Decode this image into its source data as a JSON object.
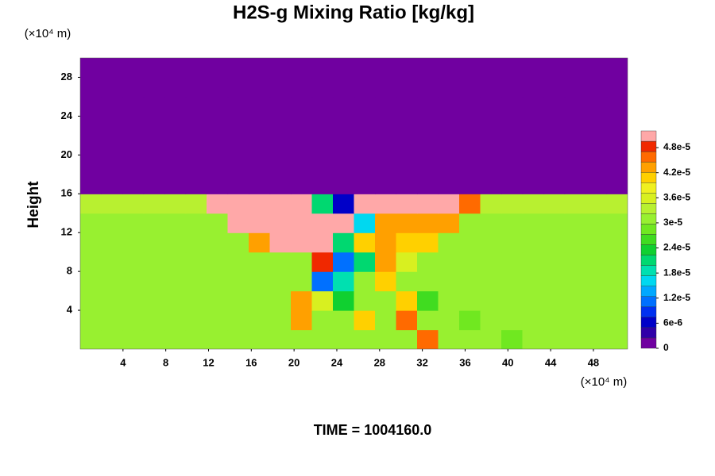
{
  "chart_data": {
    "type": "contour",
    "title": "H2S-g Mixing Ratio [kg/kg]",
    "ylabel": "Height",
    "xunit": "(×10⁴ m)",
    "yunit": "(×10⁴ m)",
    "footer": "TIME = 1004160.0",
    "xlim": [
      0,
      51.2
    ],
    "ylim": [
      0,
      30
    ],
    "xticks": [
      4,
      8,
      12,
      16,
      20,
      24,
      28,
      32,
      36,
      40,
      44,
      48
    ],
    "yticks": [
      4,
      8,
      12,
      16,
      20,
      24,
      28
    ],
    "colorbar": {
      "lim": [
        0,
        5.2e-05
      ],
      "colors": [
        "#7000a0",
        "#3000a8",
        "#0000c8",
        "#0030f0",
        "#0070ff",
        "#00a8ff",
        "#00d8f0",
        "#00e0b0",
        "#00d870",
        "#10d030",
        "#40dc20",
        "#70e820",
        "#98f030",
        "#b8f030",
        "#d8f020",
        "#f0f020",
        "#ffd000",
        "#ffa000",
        "#ff6a00",
        "#f02800",
        "#ffa8a8"
      ],
      "ticks": [
        0,
        {
          "value": 6e-06,
          "label": "6e-6"
        },
        {
          "value": 1.2e-05,
          "label": "1.2e-5"
        },
        {
          "value": 1.8e-05,
          "label": "1.8e-5"
        },
        {
          "value": 2.4e-05,
          "label": "2.4e-5"
        },
        {
          "value": 3e-05,
          "label": "3e-5"
        },
        {
          "value": 3.6e-05,
          "label": "3.6e-5"
        },
        {
          "value": 4.2e-05,
          "label": "4.2e-5"
        },
        {
          "value": 4.8e-05,
          "label": "4.8e-5"
        }
      ]
    },
    "z": [
      [
        3.2e-05,
        3.2e-05,
        3.2e-05,
        3.2e-05,
        3.2e-05,
        3.2e-05,
        3.2e-05,
        3.2e-05,
        3.2e-05,
        3.2e-05,
        3.2e-05,
        3.2e-05,
        3.2e-05,
        3.2e-05,
        3.2e-05,
        3.2e-05,
        4.6e-05,
        3.2e-05,
        3.2e-05,
        3.2e-05,
        2.8e-05,
        3.2e-05,
        3.2e-05,
        3.2e-05,
        3.2e-05,
        3.2e-05
      ],
      [
        3.2e-05,
        3.2e-05,
        3.2e-05,
        3.2e-05,
        3.2e-05,
        3.2e-05,
        3.2e-05,
        3.2e-05,
        3.2e-05,
        3.2e-05,
        4.4e-05,
        3.2e-05,
        3.2e-05,
        4.2e-05,
        3.2e-05,
        4.6e-05,
        3.2e-05,
        3e-05,
        2.8e-05,
        3.2e-05,
        3.2e-05,
        3.2e-05,
        3.2e-05,
        3.2e-05,
        3.2e-05,
        3.2e-05
      ],
      [
        3.2e-05,
        3.2e-05,
        3.2e-05,
        3.2e-05,
        3.2e-05,
        3.2e-05,
        3.2e-05,
        3.2e-05,
        3.2e-05,
        3.2e-05,
        4.4e-05,
        3.6e-05,
        2.4e-05,
        3.2e-05,
        3.2e-05,
        4.2e-05,
        2.6e-05,
        3.2e-05,
        3.2e-05,
        3.2e-05,
        3.2e-05,
        3.2e-05,
        3.2e-05,
        3.2e-05,
        3.2e-05,
        3.2e-05
      ],
      [
        3.2e-05,
        3.2e-05,
        3.2e-05,
        3.2e-05,
        3.2e-05,
        3.2e-05,
        3.2e-05,
        3.2e-05,
        3.2e-05,
        3.2e-05,
        3.2e-05,
        1.2e-05,
        1.8e-05,
        3e-05,
        4e-05,
        3.2e-05,
        3.2e-05,
        3.2e-05,
        3.2e-05,
        3.2e-05,
        3.2e-05,
        3.2e-05,
        3.2e-05,
        3.2e-05,
        3.2e-05,
        3.2e-05
      ],
      [
        3.2e-05,
        3.2e-05,
        3.2e-05,
        3.2e-05,
        3.2e-05,
        3.2e-05,
        3.2e-05,
        3.2e-05,
        3.2e-05,
        3.2e-05,
        3.2e-05,
        4.8e-05,
        1e-05,
        2.2e-05,
        4.4e-05,
        3.6e-05,
        3.2e-05,
        3.2e-05,
        3.2e-05,
        3.2e-05,
        3.2e-05,
        3.2e-05,
        3.2e-05,
        3.2e-05,
        3.2e-05,
        3.2e-05
      ],
      [
        3.2e-05,
        3.2e-05,
        3.2e-05,
        3.2e-05,
        3.2e-05,
        3.2e-05,
        3.2e-05,
        3.2e-05,
        4.4e-05,
        5e-05,
        5e-05,
        5e-05,
        2e-05,
        4e-05,
        4.4e-05,
        4e-05,
        4e-05,
        3.2e-05,
        3.2e-05,
        3.2e-05,
        3.2e-05,
        3.2e-05,
        3.2e-05,
        3.2e-05,
        3.2e-05,
        3.2e-05
      ],
      [
        3.2e-05,
        3.2e-05,
        3.2e-05,
        3.2e-05,
        3.2e-05,
        3.2e-05,
        3.2e-05,
        5e-05,
        5e-05,
        5e-05,
        5e-05,
        5e-05,
        5e-05,
        1.5e-05,
        4.4e-05,
        4.4e-05,
        4.4e-05,
        4.4e-05,
        3.2e-05,
        3.2e-05,
        3.2e-05,
        3.2e-05,
        3.2e-05,
        3.2e-05,
        3.2e-05,
        3.2e-05
      ],
      [
        3.4e-05,
        3.4e-05,
        3.4e-05,
        3.4e-05,
        3.4e-05,
        3.4e-05,
        5e-05,
        5e-05,
        5e-05,
        5e-05,
        5e-05,
        2e-05,
        5e-06,
        5e-05,
        5e-05,
        5e-05,
        5e-05,
        5e-05,
        4.5e-05,
        3.4e-05,
        3.4e-05,
        3.4e-05,
        3.4e-05,
        3.4e-05,
        3.4e-05,
        3.4e-05
      ],
      [
        0,
        0,
        0,
        0,
        0,
        0,
        0,
        0,
        0,
        0,
        0,
        0,
        0,
        0,
        0,
        0,
        0,
        0,
        0,
        0,
        0,
        0,
        0,
        0,
        0,
        0
      ],
      [
        0,
        0,
        0,
        0,
        0,
        0,
        0,
        0,
        0,
        0,
        0,
        0,
        0,
        0,
        0,
        0,
        0,
        0,
        0,
        0,
        0,
        0,
        0,
        0,
        0,
        0
      ],
      [
        0,
        0,
        0,
        0,
        0,
        0,
        0,
        0,
        0,
        0,
        0,
        0,
        0,
        0,
        0,
        0,
        0,
        0,
        0,
        0,
        0,
        0,
        0,
        0,
        0,
        0
      ],
      [
        0,
        0,
        0,
        0,
        0,
        0,
        0,
        0,
        0,
        0,
        0,
        0,
        0,
        0,
        0,
        0,
        0,
        0,
        0,
        0,
        0,
        0,
        0,
        0,
        0,
        0
      ],
      [
        0,
        0,
        0,
        0,
        0,
        0,
        0,
        0,
        0,
        0,
        0,
        0,
        0,
        0,
        0,
        0,
        0,
        0,
        0,
        0,
        0,
        0,
        0,
        0,
        0,
        0
      ],
      [
        0,
        0,
        0,
        0,
        0,
        0,
        0,
        0,
        0,
        0,
        0,
        0,
        0,
        0,
        0,
        0,
        0,
        0,
        0,
        0,
        0,
        0,
        0,
        0,
        0,
        0
      ],
      [
        0,
        0,
        0,
        0,
        0,
        0,
        0,
        0,
        0,
        0,
        0,
        0,
        0,
        0,
        0,
        0,
        0,
        0,
        0,
        0,
        0,
        0,
        0,
        0,
        0,
        0
      ]
    ]
  }
}
